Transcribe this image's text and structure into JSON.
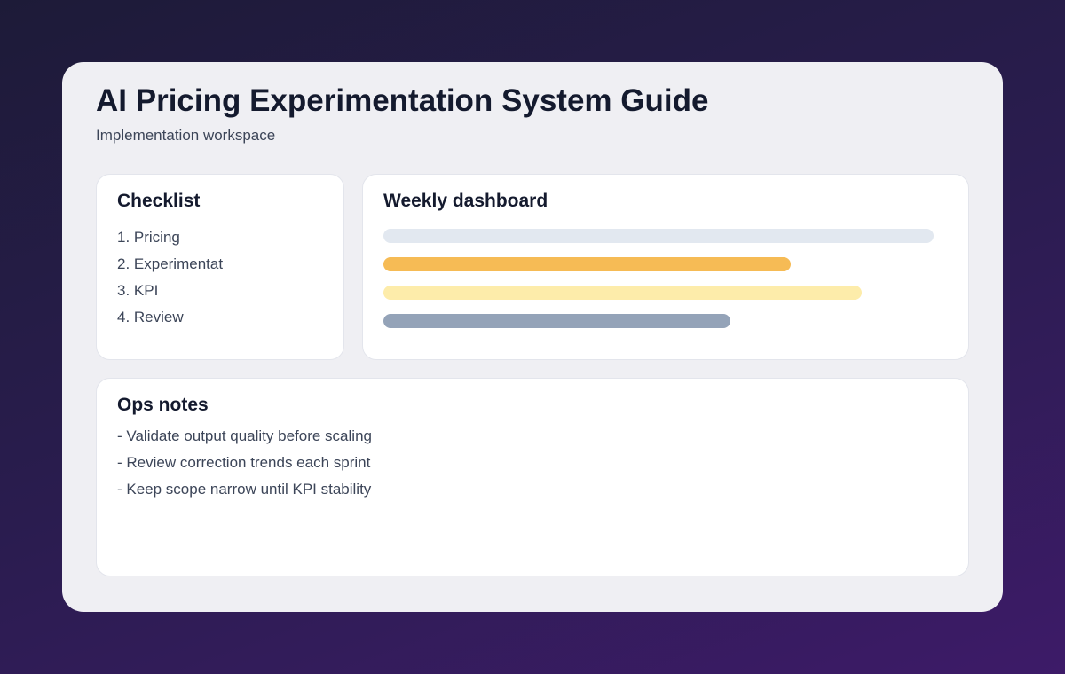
{
  "header": {
    "title": "AI Pricing Experimentation System Guide",
    "subtitle": "Implementation workspace"
  },
  "checklist": {
    "title": "Checklist",
    "items": [
      "1. Pricing",
      "2. Experimentat",
      "3. KPI",
      "4. Review"
    ]
  },
  "dashboard": {
    "title": "Weekly dashboard",
    "bars": [
      {
        "percent": 100,
        "color": "#e2e8f0"
      },
      {
        "percent": 74,
        "color": "#f6bb55"
      },
      {
        "percent": 87,
        "color": "#fdecaa"
      },
      {
        "percent": 63,
        "color": "#94a3b8"
      }
    ]
  },
  "notes": {
    "title": "Ops notes",
    "items": [
      "- Validate output quality before scaling",
      "- Review correction trends each sprint",
      "- Keep scope narrow until KPI stability"
    ]
  }
}
